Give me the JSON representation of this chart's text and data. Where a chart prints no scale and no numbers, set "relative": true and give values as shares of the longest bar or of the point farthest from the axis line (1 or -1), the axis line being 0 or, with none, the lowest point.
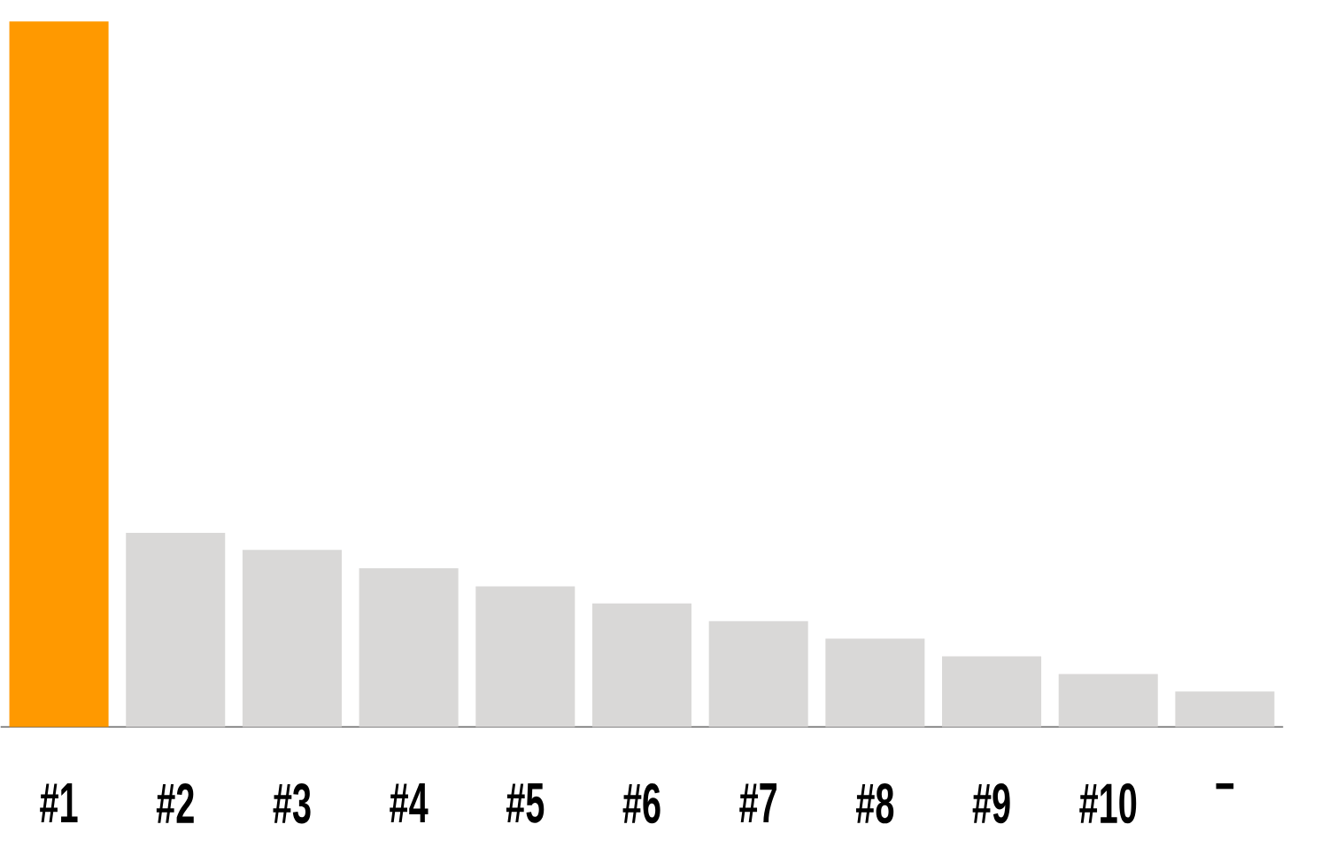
{
  "chart_data": {
    "type": "bar",
    "relative": true,
    "categories": [
      "#1",
      "#2",
      "#3",
      "#4",
      "#5",
      "#6",
      "#7",
      "#8",
      "#9",
      "#10",
      "–"
    ],
    "values": [
      1,
      0.275,
      0.251,
      0.225,
      0.199,
      0.175,
      0.15,
      0.125,
      0.1,
      0.075,
      0.05
    ],
    "colors": [
      "#ff9900",
      "#d9d8d7",
      "#d9d8d7",
      "#d9d8d7",
      "#d9d8d7",
      "#d9d8d7",
      "#d9d8d7",
      "#d9d8d7",
      "#d9d8d7",
      "#d9d8d7",
      "#d9d8d7"
    ]
  }
}
